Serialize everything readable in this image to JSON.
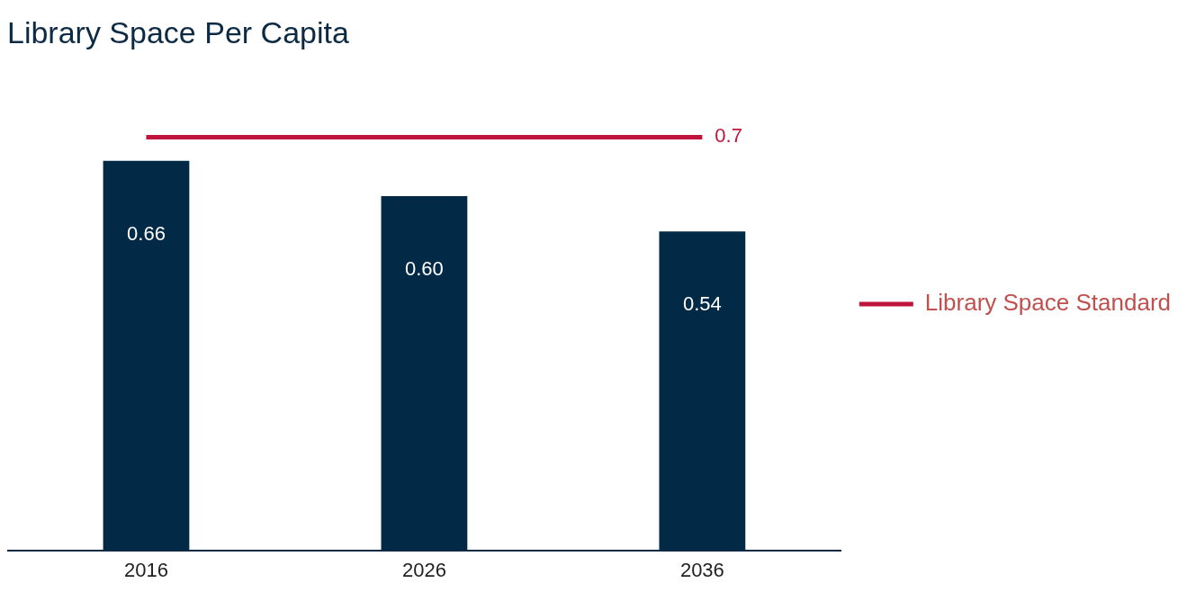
{
  "chart_data": {
    "type": "bar",
    "title": "Library Space Per Capita",
    "categories": [
      "2016",
      "2026",
      "2036"
    ],
    "series": [
      {
        "color": "#022a46",
        "values": [
          0.66,
          0.6,
          0.54
        ],
        "value_labels": [
          "0.66",
          "0.60",
          "0.54"
        ]
      },
      {
        "type": "line",
        "name": "Library Space Standard",
        "color": "#c0143c",
        "values": [
          0.7,
          0.7,
          0.7
        ],
        "value_labels": [
          null,
          null,
          "0.7"
        ]
      }
    ],
    "tick_labels": "x",
    "grid": false,
    "legend": "right",
    "marker": "none"
  }
}
